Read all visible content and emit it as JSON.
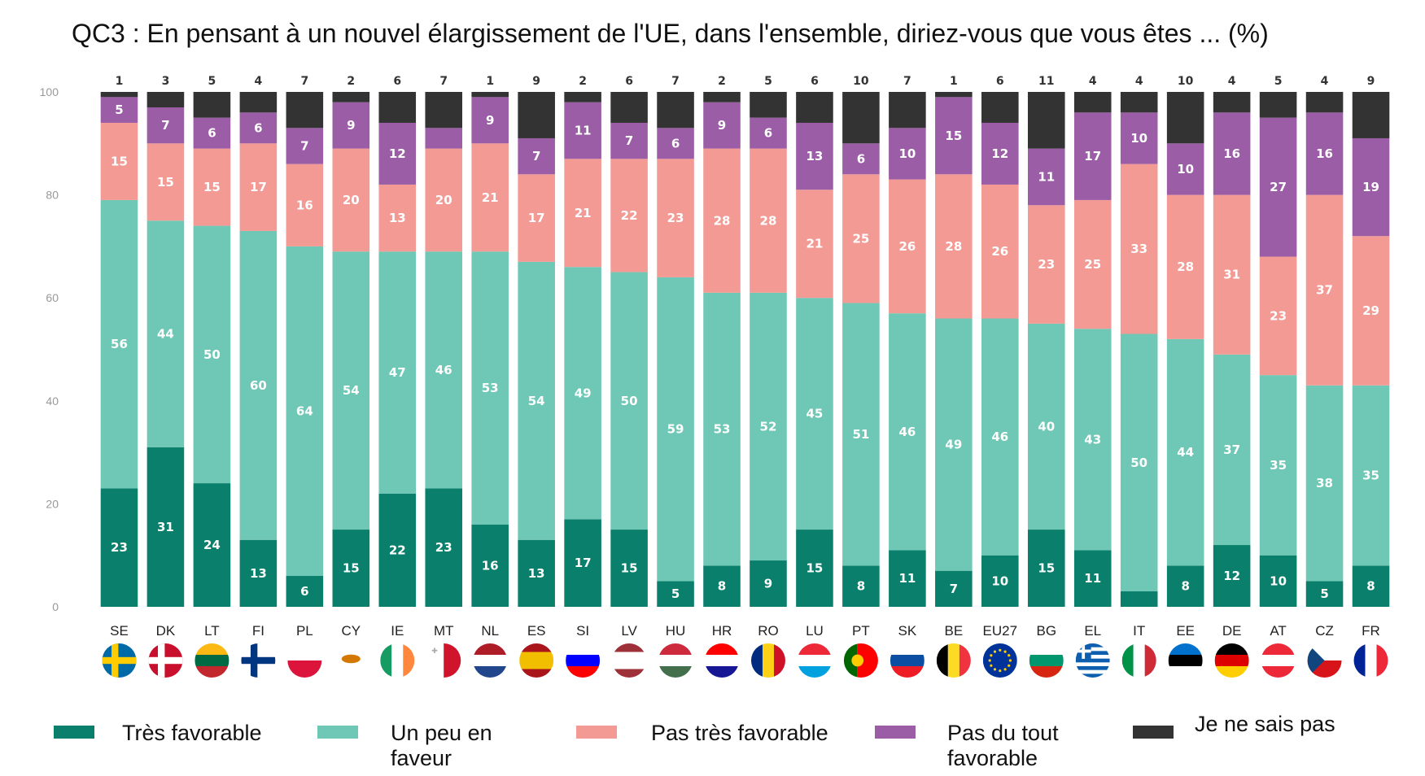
{
  "chart_data": {
    "type": "bar",
    "stacked": true,
    "title": "QC3 : En pensant à un nouvel élargissement de l'UE, dans l'ensemble, diriez-vous que vous êtes ... (%)",
    "ylim": [
      0,
      100
    ],
    "yticks": [
      0,
      20,
      40,
      60,
      80,
      100
    ],
    "categories": [
      "SE",
      "DK",
      "LT",
      "FI",
      "PL",
      "CY",
      "IE",
      "MT",
      "NL",
      "ES",
      "SI",
      "LV",
      "HU",
      "HR",
      "RO",
      "LU",
      "PT",
      "SK",
      "BE",
      "EU27",
      "BG",
      "EL",
      "IT",
      "EE",
      "DE",
      "AT",
      "CZ",
      "FR"
    ],
    "series": [
      {
        "name": "Très favorable",
        "color": "#0a7f6b",
        "values": [
          23,
          31,
          24,
          13,
          6,
          15,
          22,
          23,
          16,
          13,
          17,
          15,
          5,
          8,
          9,
          15,
          8,
          11,
          7,
          10,
          15,
          11,
          3,
          8,
          12,
          10,
          5,
          8
        ],
        "labels": [
          "23",
          "31",
          "24",
          "13",
          "6",
          "15",
          "22",
          "23",
          "16",
          "13",
          "17",
          "15",
          "5",
          "8",
          "9",
          "15",
          "8",
          "11",
          "7",
          "10",
          "15",
          "11",
          "",
          "8",
          "12",
          "10",
          "5",
          "8"
        ]
      },
      {
        "name": "Un peu en faveur",
        "color": "#6fc8b6",
        "values": [
          56,
          44,
          50,
          60,
          64,
          54,
          47,
          46,
          53,
          54,
          49,
          50,
          59,
          53,
          52,
          45,
          51,
          46,
          49,
          46,
          40,
          43,
          50,
          44,
          37,
          35,
          38,
          35
        ]
      },
      {
        "name": "Pas très favorable",
        "color": "#f29a93",
        "values": [
          15,
          15,
          15,
          17,
          16,
          20,
          13,
          20,
          21,
          17,
          21,
          22,
          23,
          28,
          28,
          21,
          25,
          26,
          28,
          26,
          23,
          25,
          33,
          28,
          31,
          23,
          37,
          29
        ]
      },
      {
        "name": "Pas du tout favorable",
        "color": "#9b5ea6",
        "values": [
          5,
          7,
          6,
          6,
          7,
          9,
          12,
          4,
          9,
          7,
          11,
          7,
          6,
          9,
          6,
          13,
          6,
          10,
          15,
          12,
          11,
          17,
          10,
          10,
          16,
          27,
          16,
          19
        ],
        "labels": [
          "5",
          "7",
          "6",
          "6",
          "7",
          "9",
          "12",
          "",
          "9",
          "7",
          "11",
          "7",
          "6",
          "9",
          "6",
          "13",
          "6",
          "10",
          "15",
          "12",
          "11",
          "17",
          "10",
          "10",
          "16",
          "27",
          "16",
          "19"
        ]
      },
      {
        "name": "Je ne sais pas",
        "color": "#333333",
        "values": [
          1,
          3,
          5,
          4,
          7,
          2,
          6,
          7,
          1,
          9,
          2,
          6,
          7,
          2,
          5,
          6,
          10,
          7,
          1,
          6,
          11,
          4,
          4,
          10,
          4,
          5,
          4,
          9
        ]
      }
    ]
  },
  "legend": [
    {
      "label": "Très favorable",
      "color": "#0a7f6b"
    },
    {
      "label": "Un peu en faveur",
      "color": "#6fc8b6"
    },
    {
      "label": "Pas très favorable",
      "color": "#f29a93"
    },
    {
      "label": "Pas du tout favorable",
      "color": "#9b5ea6"
    },
    {
      "label": "Je ne sais pas",
      "color": "#333333"
    }
  ],
  "flags": {
    "SE": {
      "type": "nordic",
      "colors": [
        "#006aa7",
        "#fecc00"
      ]
    },
    "DK": {
      "type": "nordic",
      "colors": [
        "#c8102e",
        "#ffffff"
      ]
    },
    "LT": {
      "type": "h3",
      "colors": [
        "#fdb913",
        "#006a44",
        "#c1272d"
      ]
    },
    "FI": {
      "type": "nordic",
      "colors": [
        "#ffffff",
        "#003580"
      ]
    },
    "PL": {
      "type": "h2",
      "colors": [
        "#ffffff",
        "#dc143c"
      ]
    },
    "CY": {
      "type": "plain",
      "colors": [
        "#ffffff",
        "#d57800"
      ]
    },
    "IE": {
      "type": "v3",
      "colors": [
        "#169b62",
        "#ffffff",
        "#ff883e"
      ]
    },
    "MT": {
      "type": "v2",
      "colors": [
        "#ffffff",
        "#cf142b"
      ]
    },
    "NL": {
      "type": "h3",
      "colors": [
        "#ae1c28",
        "#ffffff",
        "#21468b"
      ]
    },
    "ES": {
      "type": "h3w",
      "colors": [
        "#aa151b",
        "#f1bf00",
        "#aa151b"
      ]
    },
    "SI": {
      "type": "h3",
      "colors": [
        "#ffffff",
        "#0000ff",
        "#ff0000"
      ]
    },
    "LV": {
      "type": "h3w",
      "colors": [
        "#9e3039",
        "#ffffff",
        "#9e3039"
      ]
    },
    "HU": {
      "type": "h3",
      "colors": [
        "#cd2a3e",
        "#ffffff",
        "#436f4d"
      ]
    },
    "HR": {
      "type": "h3",
      "colors": [
        "#ff0000",
        "#ffffff",
        "#171796"
      ]
    },
    "RO": {
      "type": "v3",
      "colors": [
        "#002b7f",
        "#fcd116",
        "#ce1126"
      ]
    },
    "LU": {
      "type": "h3",
      "colors": [
        "#ed2939",
        "#ffffff",
        "#00a1de"
      ]
    },
    "PT": {
      "type": "v2p",
      "colors": [
        "#006600",
        "#ff0000"
      ]
    },
    "SK": {
      "type": "h3",
      "colors": [
        "#ffffff",
        "#0b4ea2",
        "#ee1c25"
      ]
    },
    "BE": {
      "type": "v3",
      "colors": [
        "#000000",
        "#fdda24",
        "#ef3340"
      ]
    },
    "EU27": {
      "type": "eu",
      "colors": [
        "#003399",
        "#ffcc00"
      ]
    },
    "BG": {
      "type": "h3",
      "colors": [
        "#ffffff",
        "#00966e",
        "#d62612"
      ]
    },
    "EL": {
      "type": "gr",
      "colors": [
        "#0d5eaf",
        "#ffffff"
      ]
    },
    "IT": {
      "type": "v3",
      "colors": [
        "#009246",
        "#ffffff",
        "#ce2b37"
      ]
    },
    "EE": {
      "type": "h3",
      "colors": [
        "#0072ce",
        "#000000",
        "#ffffff"
      ]
    },
    "DE": {
      "type": "h3",
      "colors": [
        "#000000",
        "#dd0000",
        "#ffce00"
      ]
    },
    "AT": {
      "type": "h3",
      "colors": [
        "#ed2939",
        "#ffffff",
        "#ed2939"
      ]
    },
    "CZ": {
      "type": "cz",
      "colors": [
        "#ffffff",
        "#d7141a",
        "#11457e"
      ]
    },
    "FR": {
      "type": "v3",
      "colors": [
        "#002395",
        "#ffffff",
        "#ed2939"
      ]
    }
  }
}
